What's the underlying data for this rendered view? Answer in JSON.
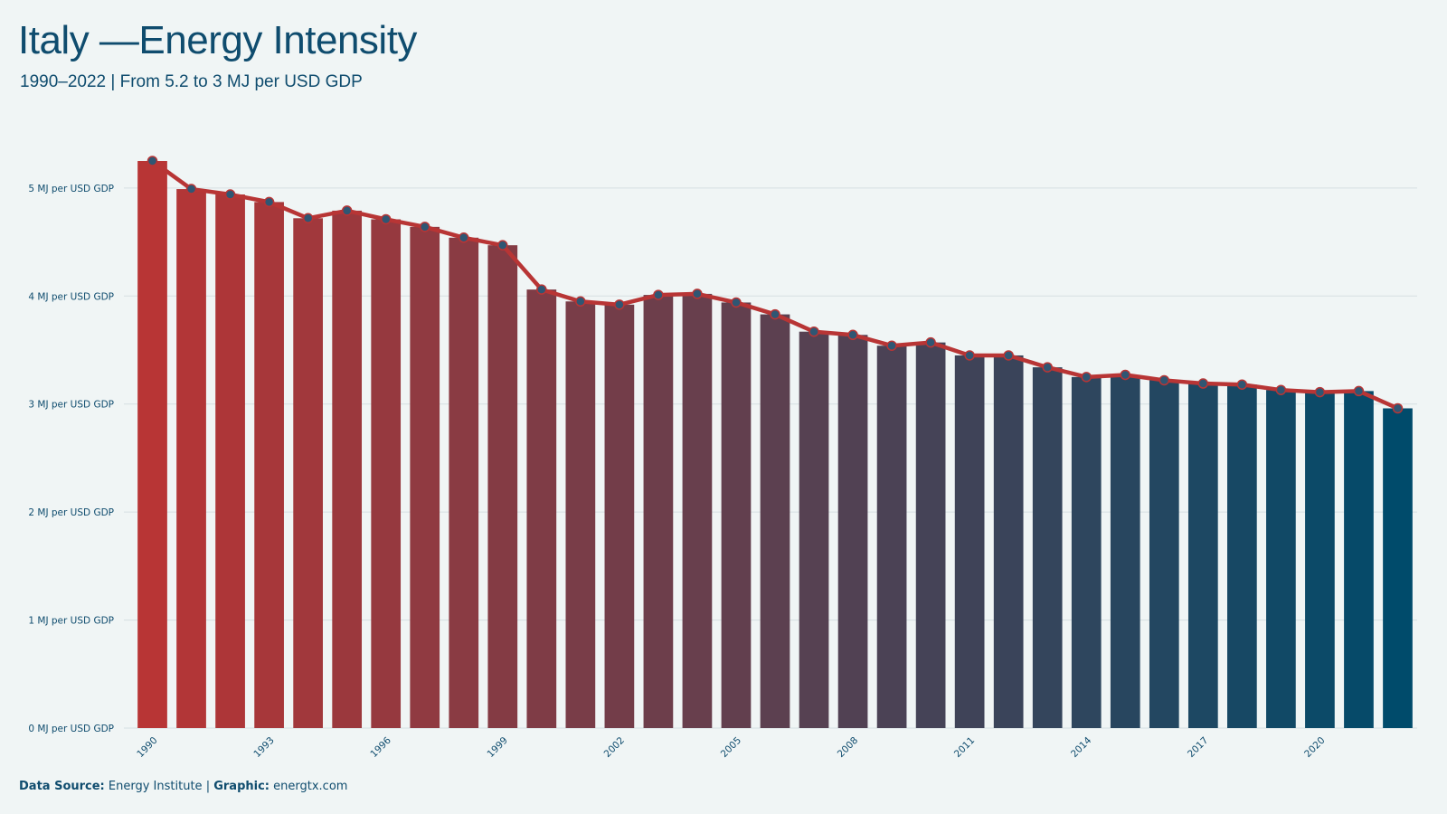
{
  "header": {
    "title": "Italy —Energy Intensity",
    "subtitle": "1990–2022 | From 5.2 to 3 MJ per USD GDP"
  },
  "footer": {
    "source_label": "Data Source:",
    "source_value": "Energy Institute",
    "separator": "|",
    "graphic_label": "Graphic:",
    "graphic_value": "energtx.com"
  },
  "colors": {
    "background": "#f0f5f5",
    "bar_start": "#b83535",
    "bar_end": "#004b6b",
    "line": "#b83535",
    "marker": "#2f5673",
    "grid": "#d5dfe2",
    "text": "#0f4c6e"
  },
  "chart_data": {
    "type": "bar",
    "title": "Italy —Energy Intensity",
    "subtitle": "1990–2022 | From 5.2 to 3 MJ per USD GDP",
    "xlabel": "",
    "ylabel": "",
    "ylim": [
      0,
      5.25
    ],
    "y_ticks": [
      0,
      1,
      2,
      3,
      4,
      5
    ],
    "y_tick_labels": [
      "0 MJ per USD GDP",
      "1 MJ per USD GDP",
      "2 MJ per USD GDP",
      "3 MJ per USD GDP",
      "4 MJ per USD GDP",
      "5 MJ per USD GDP"
    ],
    "x_tick_labels": [
      "1990",
      "1993",
      "1996",
      "1999",
      "2002",
      "2005",
      "2008",
      "2011",
      "2014",
      "2017",
      "2020"
    ],
    "grid": true,
    "legend": "none",
    "categories": [
      1990,
      1991,
      1992,
      1993,
      1994,
      1995,
      1996,
      1997,
      1998,
      1999,
      2000,
      2001,
      2002,
      2003,
      2004,
      2005,
      2006,
      2007,
      2008,
      2009,
      2010,
      2011,
      2012,
      2013,
      2014,
      2015,
      2016,
      2017,
      2018,
      2019,
      2020,
      2021,
      2022
    ],
    "series": [
      {
        "values": [
          5.25,
          4.99,
          4.94,
          4.87,
          4.72,
          4.79,
          4.71,
          4.64,
          4.54,
          4.47,
          4.06,
          3.95,
          3.92,
          4.01,
          4.02,
          3.94,
          3.83,
          3.67,
          3.64,
          3.54,
          3.57,
          3.45,
          3.45,
          3.34,
          3.25,
          3.27,
          3.22,
          3.19,
          3.18,
          3.13,
          3.11,
          3.12,
          2.96
        ]
      }
    ],
    "overlay": "line-with-markers"
  }
}
